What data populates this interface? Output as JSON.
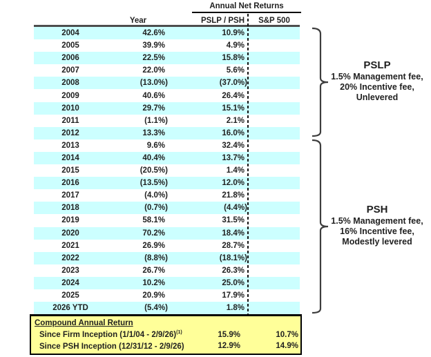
{
  "header": {
    "group_title": "Annual Net Returns",
    "columns": {
      "year": "Year",
      "fund": "PSLP / PSH",
      "benchmark": "S&P 500"
    }
  },
  "table": {
    "rows": [
      {
        "year": "2004",
        "fund": "42.6%",
        "benchmark": "10.9%"
      },
      {
        "year": "2005",
        "fund": "39.9%",
        "benchmark": "4.9%"
      },
      {
        "year": "2006",
        "fund": "22.5%",
        "benchmark": "15.8%"
      },
      {
        "year": "2007",
        "fund": "22.0%",
        "benchmark": "5.6%"
      },
      {
        "year": "2008",
        "fund": "(13.0%)",
        "benchmark": "(37.0%)"
      },
      {
        "year": "2009",
        "fund": "40.6%",
        "benchmark": "26.4%"
      },
      {
        "year": "2010",
        "fund": "29.7%",
        "benchmark": "15.1%"
      },
      {
        "year": "2011",
        "fund": "(1.1%)",
        "benchmark": "2.1%"
      },
      {
        "year": "2012",
        "fund": "13.3%",
        "benchmark": "16.0%"
      },
      {
        "year": "2013",
        "fund": "9.6%",
        "benchmark": "32.4%"
      },
      {
        "year": "2014",
        "fund": "40.4%",
        "benchmark": "13.7%"
      },
      {
        "year": "2015",
        "fund": "(20.5%)",
        "benchmark": "1.4%"
      },
      {
        "year": "2016",
        "fund": "(13.5%)",
        "benchmark": "12.0%"
      },
      {
        "year": "2017",
        "fund": "(4.0%)",
        "benchmark": "21.8%"
      },
      {
        "year": "2018",
        "fund": "(0.7%)",
        "benchmark": "(4.4%)"
      },
      {
        "year": "2019",
        "fund": "58.1%",
        "benchmark": "31.5%"
      },
      {
        "year": "2020",
        "fund": "70.2%",
        "benchmark": "18.4%"
      },
      {
        "year": "2021",
        "fund": "26.9%",
        "benchmark": "28.7%"
      },
      {
        "year": "2022",
        "fund": "(8.8%)",
        "benchmark": "(18.1%)"
      },
      {
        "year": "2023",
        "fund": "26.7%",
        "benchmark": "26.3%"
      },
      {
        "year": "2024",
        "fund": "10.2%",
        "benchmark": "25.0%"
      },
      {
        "year": "2025",
        "fund": "20.9%",
        "benchmark": "17.9%"
      },
      {
        "year": "2026 YTD",
        "fund": "(5.4%)",
        "benchmark": "1.8%"
      }
    ]
  },
  "compound": {
    "title": "Compound Annual Return",
    "rows": [
      {
        "label": "Since Firm Inception (1/1/04 - 2/9/26)",
        "footnote": "(1)",
        "fund": "15.9%",
        "benchmark": "10.7%"
      },
      {
        "label": "Since PSH Inception (12/31/12 - 2/9/26)",
        "footnote": "",
        "fund": "12.9%",
        "benchmark": "14.9%"
      }
    ]
  },
  "annotations": {
    "pslp": {
      "title": "PSLP",
      "lines": [
        "1.5% Management fee,",
        "20% Incentive fee,",
        "Unlevered"
      ]
    },
    "psh": {
      "title": "PSH",
      "lines": [
        "1.5% Management fee,",
        "16% Incentive fee,",
        "Modestly levered"
      ]
    }
  },
  "colors": {
    "row_highlight": "#CCFFFF",
    "summary_background": "#FFFF99",
    "text": "#1f1f1f",
    "header_rule": "#4d4d4d"
  },
  "chart_data": {
    "type": "table",
    "title": "Annual Net Returns",
    "columns": [
      "Year",
      "PSLP / PSH",
      "S&P 500"
    ],
    "x": [
      "2004",
      "2005",
      "2006",
      "2007",
      "2008",
      "2009",
      "2010",
      "2011",
      "2012",
      "2013",
      "2014",
      "2015",
      "2016",
      "2017",
      "2018",
      "2019",
      "2020",
      "2021",
      "2022",
      "2023",
      "2024",
      "2025",
      "2026 YTD"
    ],
    "series": [
      {
        "name": "PSLP / PSH",
        "values": [
          42.6,
          39.9,
          22.5,
          22.0,
          -13.0,
          40.6,
          29.7,
          -1.1,
          13.3,
          9.6,
          40.4,
          -20.5,
          -13.5,
          -4.0,
          -0.7,
          58.1,
          70.2,
          26.9,
          -8.8,
          26.7,
          10.2,
          20.9,
          -5.4
        ]
      },
      {
        "name": "S&P 500",
        "values": [
          10.9,
          4.9,
          15.8,
          5.6,
          -37.0,
          26.4,
          15.1,
          2.1,
          16.0,
          32.4,
          13.7,
          1.4,
          12.0,
          21.8,
          -4.4,
          31.5,
          18.4,
          28.7,
          -18.1,
          26.3,
          25.0,
          17.9,
          1.8
        ]
      }
    ],
    "compound_annual_return": [
      {
        "label": "Since Firm Inception (1/1/04 - 2/9/26)(1)",
        "pslp_psh": 15.9,
        "sp500": 10.7
      },
      {
        "label": "Since PSH Inception (12/31/12 - 2/9/26)",
        "pslp_psh": 12.9,
        "sp500": 14.9
      }
    ],
    "groupings": [
      {
        "title": "PSLP",
        "years": "2004-2012",
        "notes": [
          "1.5% Management fee,",
          "20% Incentive fee,",
          "Unlevered"
        ]
      },
      {
        "title": "PSH",
        "years": "2013-2026 YTD",
        "notes": [
          "1.5% Management fee,",
          "16% Incentive fee,",
          "Modestly levered"
        ]
      }
    ]
  }
}
